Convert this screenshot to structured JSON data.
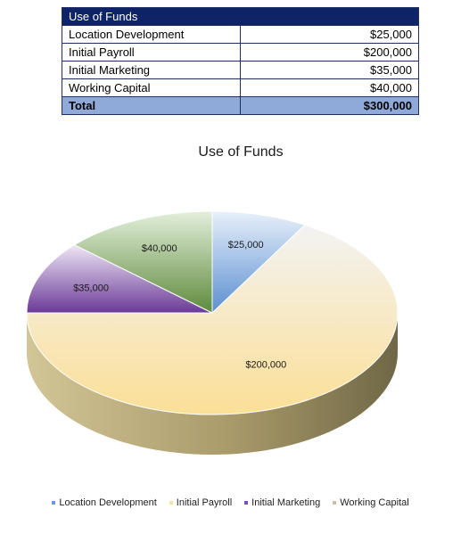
{
  "table": {
    "header": "Use of Funds",
    "rows": [
      {
        "label": "Location Development",
        "value": "$25,000"
      },
      {
        "label": "Initial Payroll",
        "value": "$200,000"
      },
      {
        "label": "Initial Marketing",
        "value": "$35,000"
      },
      {
        "label": "Working Capital",
        "value": "$40,000"
      }
    ],
    "total": {
      "label": "Total",
      "value": "$300,000"
    }
  },
  "chart_data": {
    "type": "pie",
    "title": "Use of Funds",
    "style": "3d",
    "categories": [
      "Location Development",
      "Initial Payroll",
      "Initial Marketing",
      "Working Capital"
    ],
    "values": [
      25000,
      200000,
      35000,
      40000
    ],
    "data_labels": [
      "$25,000",
      "$200,000",
      "$35,000",
      "$40,000"
    ],
    "colors": [
      "#6b9bd6",
      "#f5e3a6",
      "#7d4fa6",
      "#7fa55e"
    ],
    "legend_position": "bottom"
  }
}
